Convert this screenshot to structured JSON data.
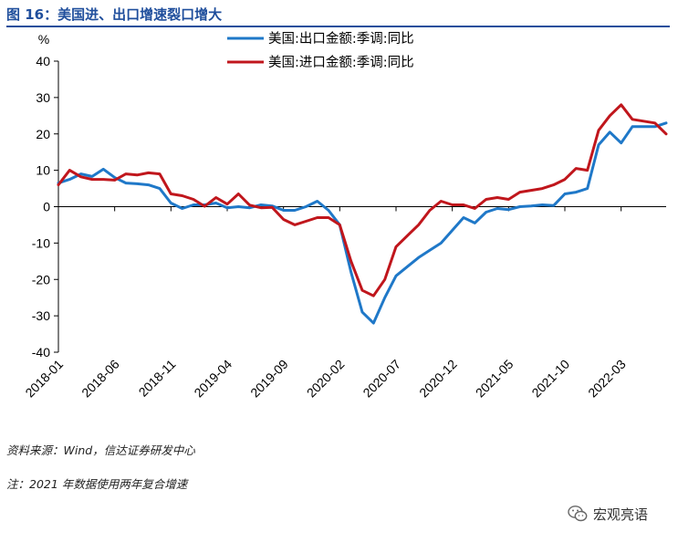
{
  "figure": {
    "title": "图 16：美国进、出口增速裂口增大",
    "source": "资料来源：Wind，信达证券研发中心",
    "note": "注：2021 年数据使用两年复合增速",
    "watermark": "宏观亮语",
    "watermark_icon": "wechat-icon"
  },
  "chart_data": {
    "type": "line",
    "title": "",
    "xlabel": "",
    "ylabel": "%",
    "ylim": [
      -40,
      40
    ],
    "yticks": [
      -40,
      -30,
      -20,
      -10,
      0,
      10,
      20,
      30,
      40
    ],
    "x": [
      "2018-01",
      "2018-02",
      "2018-03",
      "2018-04",
      "2018-05",
      "2018-06",
      "2018-07",
      "2018-08",
      "2018-09",
      "2018-10",
      "2018-11",
      "2018-12",
      "2019-01",
      "2019-02",
      "2019-03",
      "2019-04",
      "2019-05",
      "2019-06",
      "2019-07",
      "2019-08",
      "2019-09",
      "2019-10",
      "2019-11",
      "2019-12",
      "2020-01",
      "2020-02",
      "2020-03",
      "2020-04",
      "2020-05",
      "2020-06",
      "2020-07",
      "2020-08",
      "2020-09",
      "2020-10",
      "2020-11",
      "2020-12",
      "2021-01",
      "2021-02",
      "2021-03",
      "2021-04",
      "2021-05",
      "2021-06",
      "2021-07",
      "2021-08",
      "2021-09",
      "2021-10",
      "2021-11",
      "2021-12",
      "2022-01",
      "2022-02",
      "2022-03",
      "2022-04",
      "2022-05",
      "2022-06",
      "2022-07"
    ],
    "xtick_labels": [
      "2018-01",
      "2018-06",
      "2018-11",
      "2019-04",
      "2019-09",
      "2020-02",
      "2020-07",
      "2020-12",
      "2021-05",
      "2021-10",
      "2022-03"
    ],
    "legend_position": "top-center",
    "grid": false,
    "series": [
      {
        "name": "美国:出口金额:季调:同比",
        "color": "#1f78c8",
        "values": [
          6.5,
          7.5,
          9,
          8.3,
          10.3,
          8,
          6.5,
          6.3,
          6,
          5,
          1,
          -0.5,
          0.5,
          0.5,
          1,
          -0.3,
          0,
          -0.3,
          0.5,
          0.2,
          -1,
          -1,
          0,
          1.5,
          -1,
          -5,
          -18,
          -29,
          -32,
          -25,
          -19,
          -16.5,
          -14,
          -12,
          -10,
          -6.5,
          -3,
          -4.5,
          -1.5,
          -0.5,
          -0.8,
          0,
          0.2,
          0.5,
          0.3,
          3.5,
          4,
          5,
          17,
          20.5,
          17.5,
          22,
          22,
          22,
          23
        ]
      },
      {
        "name": "美国:进口金额:季调:同比",
        "color": "#c0161c",
        "values": [
          6,
          10,
          8.2,
          7.5,
          7.5,
          7.3,
          9,
          8.7,
          9.3,
          9,
          3.5,
          3,
          2,
          0.1,
          2.5,
          0.7,
          3.5,
          0.4,
          -0.3,
          -0.2,
          -3.5,
          -5,
          -4,
          -3,
          -3,
          -5,
          -15,
          -23,
          -24.5,
          -20,
          -11,
          -8,
          -5,
          -1,
          1.5,
          0.5,
          0.5,
          -0.5,
          2,
          2.5,
          2,
          4,
          4.5,
          5,
          6,
          7.5,
          10.5,
          10,
          21,
          25,
          28,
          24,
          23.5,
          23,
          20
        ]
      }
    ]
  }
}
